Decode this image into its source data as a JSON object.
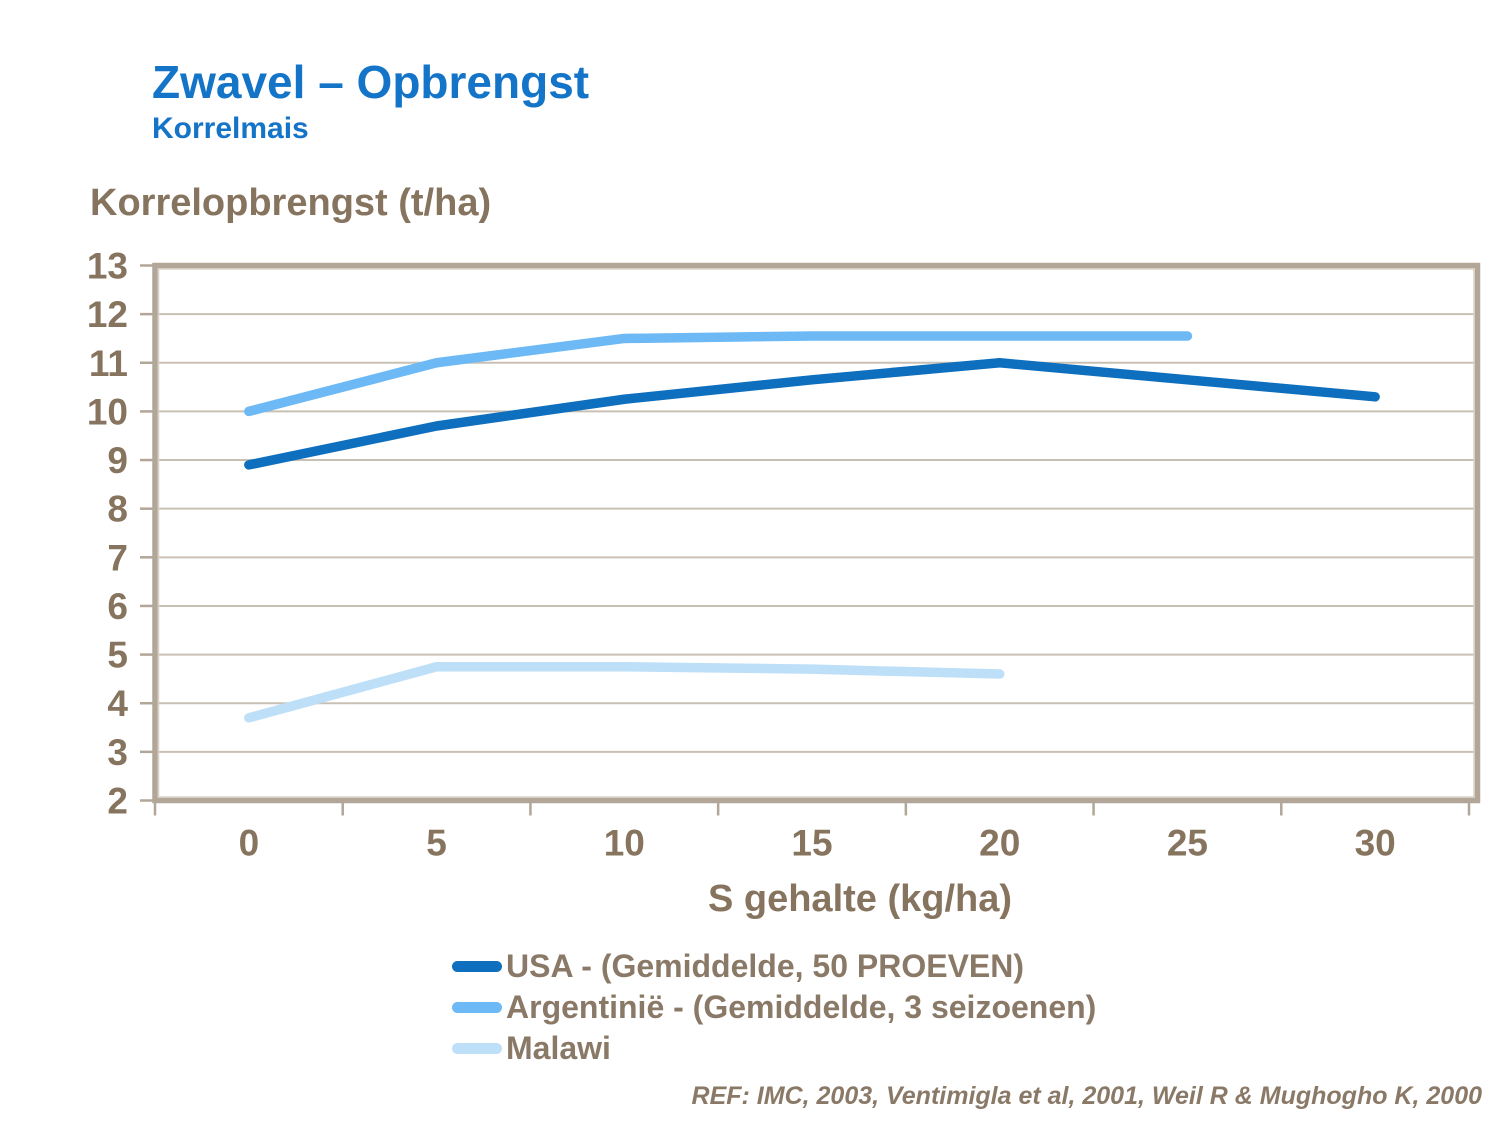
{
  "header": {
    "title": "Zwavel – Opbrengst",
    "subtitle": "Korrelmais"
  },
  "reference": "REF: IMC, 2003, Ventimigla et al, 2001, Weil R & Mughogho K, 2000",
  "colors": {
    "title_blue": "#1474C8",
    "text_brown": "#86745F",
    "legend_text_brown": "#8A7967",
    "gridline": "#C9C0B4",
    "plot_border": "#B2A698",
    "plot_border_inner": "#D8D0C5",
    "series_usa": "#0E6FBE",
    "series_argentinie": "#6CB9F5",
    "series_malawi": "#BEDFF8"
  },
  "chart_data": {
    "type": "line",
    "title": "Zwavel – Opbrengst (Korrelmais)",
    "xlabel": "S gehalte (kg/ha)",
    "ylabel": "Korrelopbrengst (t/ha)",
    "x_ticks": [
      0,
      5,
      10,
      15,
      20,
      25,
      30
    ],
    "y_ticks": [
      2,
      3,
      4,
      5,
      6,
      7,
      8,
      9,
      10,
      11,
      12,
      13
    ],
    "ylim": [
      2,
      13
    ],
    "grid": "horizontal",
    "legend_position": "bottom",
    "series": [
      {
        "name": "USA - (Gemiddelde, 50 PROEVEN)",
        "color": "#0E6FBE",
        "x": [
          0,
          5,
          10,
          15,
          20,
          25,
          30
        ],
        "values": [
          8.9,
          9.7,
          10.25,
          10.65,
          11.0,
          10.65,
          10.3
        ]
      },
      {
        "name": "Argentinië - (Gemiddelde, 3 seizoenen)",
        "color": "#6CB9F5",
        "x": [
          0,
          5,
          10,
          15,
          20,
          25
        ],
        "values": [
          10.0,
          11.0,
          11.5,
          11.55,
          11.55,
          11.55
        ]
      },
      {
        "name": "Malawi",
        "color": "#BEDFF8",
        "x": [
          0,
          5,
          10,
          15,
          20
        ],
        "values": [
          3.7,
          4.75,
          4.75,
          4.7,
          4.6
        ]
      }
    ]
  }
}
